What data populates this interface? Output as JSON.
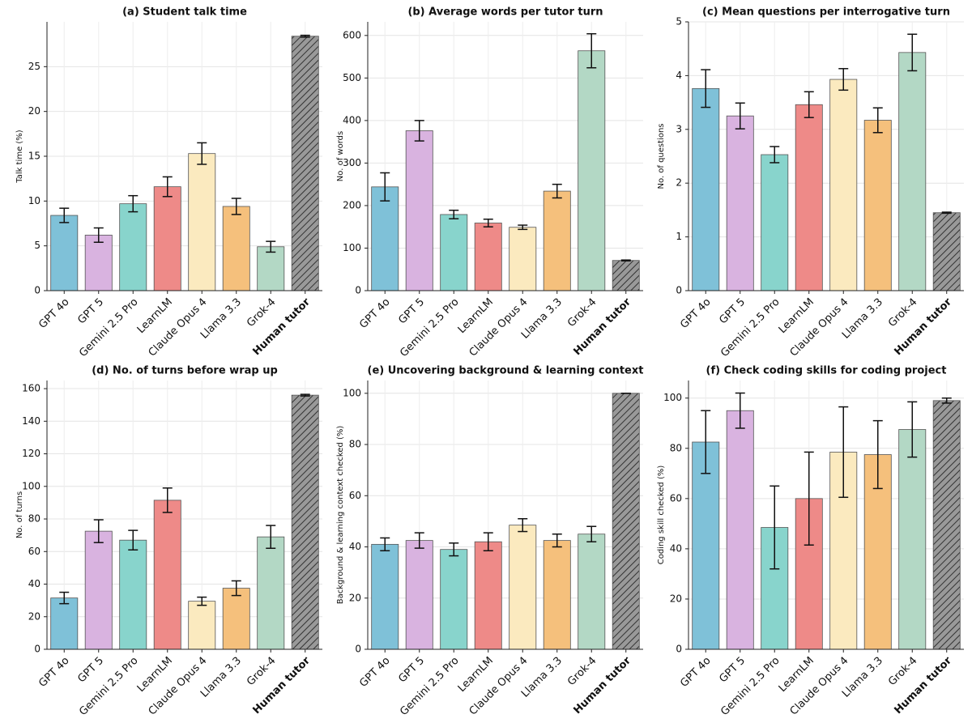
{
  "chart_data": [
    {
      "type": "bar",
      "title": "(a) Student talk time",
      "ylabel": "Talk time (%)",
      "categories": [
        "GPT 4o",
        "GPT 5",
        "Gemini 2.5 Pro",
        "LearnLM",
        "Claude Opus 4",
        "Llama 3.3",
        "Grok-4",
        "Human tutor"
      ],
      "values": [
        8.4,
        6.2,
        9.7,
        11.6,
        15.3,
        9.4,
        4.9,
        28.4
      ],
      "errors": [
        0.8,
        0.8,
        0.9,
        1.1,
        1.2,
        0.9,
        0.6,
        0.1
      ],
      "colors": [
        "#7fc1d8",
        "#d9b3e0",
        "#88d4cc",
        "#ee8a88",
        "#fbeabf",
        "#f5c07c",
        "#b3d8c5",
        "#999999"
      ],
      "hatch": [
        false,
        false,
        false,
        false,
        false,
        false,
        false,
        true
      ],
      "ylim": [
        0,
        30
      ],
      "yticks": [
        0,
        5,
        10,
        15,
        20,
        25
      ],
      "grid": true
    },
    {
      "type": "bar",
      "title": "(b) Average words per tutor turn",
      "ylabel": "No. of words",
      "categories": [
        "GPT 4o",
        "GPT 5",
        "Gemini 2.5 Pro",
        "LearnLM",
        "Claude Opus 4",
        "Llama 3.3",
        "Grok-4",
        "Human tutor"
      ],
      "values": [
        244,
        376,
        179,
        159,
        149,
        234,
        564,
        71
      ],
      "errors": [
        33,
        24,
        10,
        9,
        5,
        16,
        40,
        1
      ],
      "colors": [
        "#7fc1d8",
        "#d9b3e0",
        "#88d4cc",
        "#ee8a88",
        "#fbeabf",
        "#f5c07c",
        "#b3d8c5",
        "#999999"
      ],
      "hatch": [
        false,
        false,
        false,
        false,
        false,
        false,
        false,
        true
      ],
      "ylim": [
        0,
        632
      ],
      "yticks": [
        0,
        100,
        200,
        300,
        400,
        500,
        600
      ],
      "grid": true
    },
    {
      "type": "bar",
      "title": "(c) Mean questions per interrogative turn",
      "ylabel": "No. of questions",
      "categories": [
        "GPT 4o",
        "GPT 5",
        "Gemini 2.5 Pro",
        "LearnLM",
        "Claude Opus 4",
        "Llama 3.3",
        "Grok-4",
        "Human tutor"
      ],
      "values": [
        3.76,
        3.25,
        2.53,
        3.46,
        3.93,
        3.17,
        4.43,
        1.45
      ],
      "errors": [
        0.35,
        0.24,
        0.15,
        0.24,
        0.2,
        0.23,
        0.34,
        0.01
      ],
      "colors": [
        "#7fc1d8",
        "#d9b3e0",
        "#88d4cc",
        "#ee8a88",
        "#fbeabf",
        "#f5c07c",
        "#b3d8c5",
        "#999999"
      ],
      "hatch": [
        false,
        false,
        false,
        false,
        false,
        false,
        false,
        true
      ],
      "ylim": [
        0,
        5
      ],
      "yticks": [
        0,
        1,
        2,
        3,
        4,
        5
      ],
      "grid": true
    },
    {
      "type": "bar",
      "title": "(d) No. of turns before wrap up",
      "ylabel": "No. of turns",
      "categories": [
        "GPT 4o",
        "GPT 5",
        "Gemini 2.5 Pro",
        "LearnLM",
        "Claude Opus 4",
        "Llama 3.3",
        "Grok-4",
        "Human tutor"
      ],
      "values": [
        31.5,
        72.5,
        67,
        91.5,
        29.5,
        37.5,
        69,
        156
      ],
      "errors": [
        3.5,
        7,
        6,
        7.5,
        2.5,
        4.5,
        7,
        0.5
      ],
      "colors": [
        "#7fc1d8",
        "#d9b3e0",
        "#88d4cc",
        "#ee8a88",
        "#fbeabf",
        "#f5c07c",
        "#b3d8c5",
        "#999999"
      ],
      "hatch": [
        false,
        false,
        false,
        false,
        false,
        false,
        false,
        true
      ],
      "ylim": [
        0,
        165
      ],
      "yticks": [
        0,
        20,
        40,
        60,
        80,
        100,
        120,
        140,
        160
      ],
      "grid": true
    },
    {
      "type": "bar",
      "title": "(e) Uncovering background & learning context",
      "ylabel": "Background & learning context checked (%)",
      "categories": [
        "GPT 4o",
        "GPT 5",
        "Gemini 2.5 Pro",
        "LearnLM",
        "Claude Opus 4",
        "Llama 3.3",
        "Grok-4",
        "Human tutor"
      ],
      "values": [
        41,
        42.5,
        39,
        42,
        48.5,
        42.5,
        45,
        100
      ],
      "errors": [
        2.5,
        3,
        2.5,
        3.5,
        2.5,
        2.5,
        3,
        0
      ],
      "colors": [
        "#7fc1d8",
        "#d9b3e0",
        "#88d4cc",
        "#ee8a88",
        "#fbeabf",
        "#f5c07c",
        "#b3d8c5",
        "#999999"
      ],
      "hatch": [
        false,
        false,
        false,
        false,
        false,
        false,
        false,
        true
      ],
      "ylim": [
        0,
        105
      ],
      "yticks": [
        0,
        20,
        40,
        60,
        80,
        100
      ],
      "grid": true
    },
    {
      "type": "bar",
      "title": "(f) Check coding skills for coding project",
      "ylabel": "Coding skill checked (%)",
      "categories": [
        "GPT 4o",
        "GPT 5",
        "Gemini 2.5 Pro",
        "LearnLM",
        "Claude Opus 4",
        "Llama 3.3",
        "Grok-4",
        "Human tutor"
      ],
      "values": [
        82.5,
        95,
        48.5,
        60,
        78.5,
        77.5,
        87.5,
        99
      ],
      "errors": [
        12.5,
        7,
        16.5,
        18.5,
        18,
        13.5,
        11,
        1
      ],
      "colors": [
        "#7fc1d8",
        "#d9b3e0",
        "#88d4cc",
        "#ee8a88",
        "#fbeabf",
        "#f5c07c",
        "#b3d8c5",
        "#999999"
      ],
      "hatch": [
        false,
        false,
        false,
        false,
        false,
        false,
        false,
        true
      ],
      "ylim": [
        0,
        107
      ],
      "yticks": [
        0,
        20,
        40,
        60,
        80,
        100
      ],
      "grid": true
    }
  ]
}
